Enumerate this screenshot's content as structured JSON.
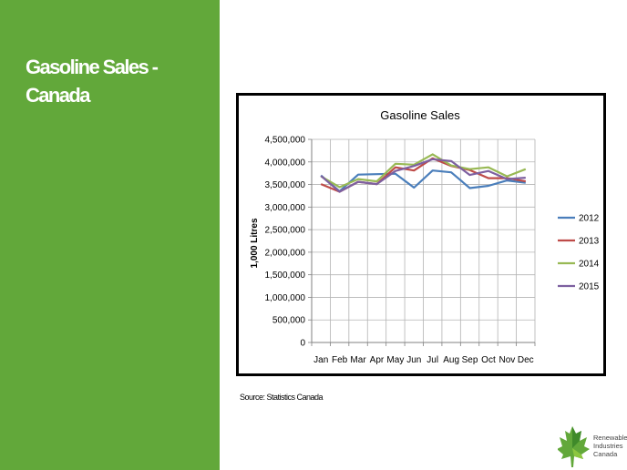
{
  "slide": {
    "title_line1": "Gasoline Sales -",
    "title_line2": "Canada",
    "source": "Source: Statistics Canada"
  },
  "logo": {
    "line1": "Renewable",
    "line2": "Industries",
    "line3": "Canada",
    "icon": "maple-leaf-icon"
  },
  "colors": {
    "sidebar": "#62a83a",
    "series_2012": "#4a7ebb",
    "series_2013": "#be4b48",
    "series_2014": "#98b954",
    "series_2015": "#7d60a0"
  },
  "chart_data": {
    "type": "line",
    "title": "Gasoline Sales",
    "xlabel": "",
    "ylabel": "1,000 Litres",
    "ylim": [
      0,
      4500000
    ],
    "yticks": [
      "4,500,000",
      "4,000,000",
      "3,500,000",
      "3,000,000",
      "2,500,000",
      "2,000,000",
      "1,500,000",
      "1,000,000",
      "500,000",
      "0"
    ],
    "grid": true,
    "legend": "right",
    "categories": [
      "Jan",
      "Feb",
      "Mar",
      "Apr",
      "May",
      "Jun",
      "Jul",
      "Aug",
      "Sep",
      "Oct",
      "Nov",
      "Dec"
    ],
    "series": [
      {
        "name": "2012",
        "color": "#4a7ebb",
        "values": [
          3700000,
          3350000,
          3720000,
          3730000,
          3740000,
          3430000,
          3810000,
          3770000,
          3420000,
          3470000,
          3590000,
          3540000
        ]
      },
      {
        "name": "2013",
        "color": "#be4b48",
        "values": [
          3510000,
          3340000,
          3560000,
          3510000,
          3880000,
          3810000,
          4080000,
          3910000,
          3820000,
          3640000,
          3640000,
          3570000
        ]
      },
      {
        "name": "2014",
        "color": "#98b954",
        "values": [
          3680000,
          3440000,
          3620000,
          3570000,
          3960000,
          3940000,
          4170000,
          3920000,
          3840000,
          3880000,
          3680000,
          3840000
        ]
      },
      {
        "name": "2015",
        "color": "#7d60a0",
        "values": [
          3690000,
          3340000,
          3560000,
          3510000,
          3800000,
          3910000,
          4060000,
          4020000,
          3710000,
          3800000,
          3620000,
          3650000
        ]
      }
    ]
  }
}
